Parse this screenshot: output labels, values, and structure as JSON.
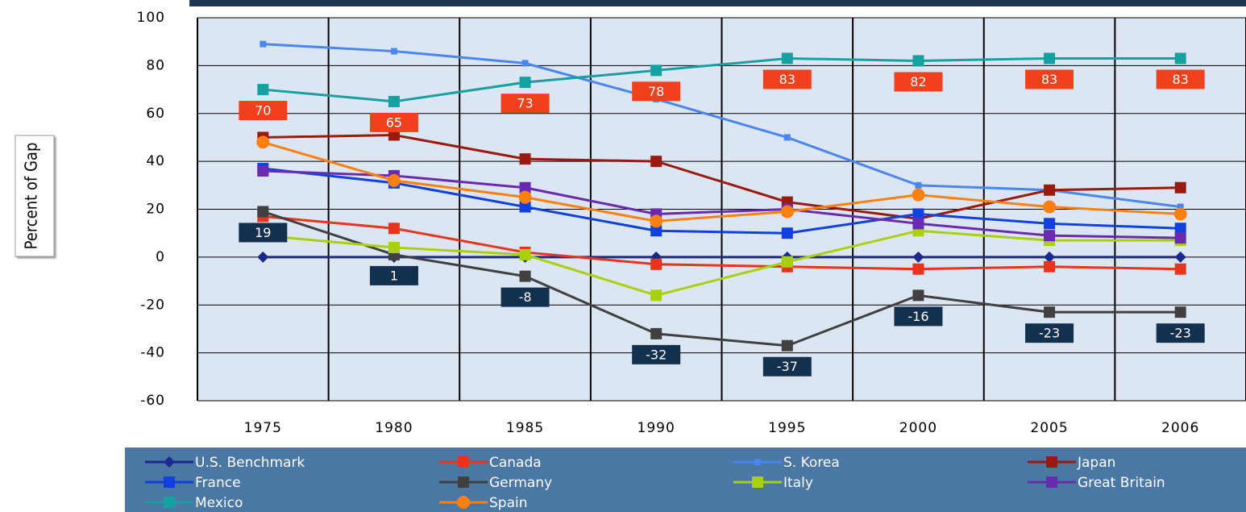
{
  "chart_data": {
    "type": "line",
    "y_label": "Percent of Gap",
    "categories": [
      "1975",
      "1980",
      "1985",
      "1990",
      "1995",
      "2000",
      "2005",
      "2006"
    ],
    "ylim": [
      -60,
      100
    ],
    "yticks": [
      -60,
      -40,
      -20,
      0,
      20,
      40,
      60,
      80,
      100
    ],
    "grid": true,
    "series": [
      {
        "name": "U.S. Benchmark",
        "color": "#1a2a8c",
        "marker": "diamond",
        "values": [
          0,
          0,
          0,
          0,
          0,
          0,
          0,
          0
        ]
      },
      {
        "name": "Canada",
        "color": "#e8341c",
        "marker": "square",
        "values": [
          17,
          12,
          2,
          -3,
          -4,
          -5,
          -4,
          -5
        ]
      },
      {
        "name": "S. Korea",
        "color": "#4a86f0",
        "marker": "small",
        "values": [
          89,
          86,
          81,
          66,
          50,
          30,
          28,
          21
        ]
      },
      {
        "name": "Japan",
        "color": "#9a1a10",
        "marker": "square",
        "values": [
          50,
          51,
          41,
          40,
          23,
          16,
          28,
          29
        ]
      },
      {
        "name": "France",
        "color": "#1040e0",
        "marker": "square",
        "values": [
          37,
          31,
          21,
          11,
          10,
          18,
          14,
          12
        ]
      },
      {
        "name": "Germany",
        "color": "#404040",
        "marker": "square",
        "values": [
          19,
          1,
          -8,
          -32,
          -37,
          -16,
          -23,
          -23
        ],
        "data_labels": true,
        "label_color": "#14304f"
      },
      {
        "name": "Italy",
        "color": "#a8d010",
        "marker": "square",
        "values": [
          9,
          4,
          1,
          -16,
          -2,
          11,
          7,
          7
        ]
      },
      {
        "name": "Great Britain",
        "color": "#6a2ab0",
        "marker": "square",
        "values": [
          36,
          34,
          29,
          18,
          20,
          14,
          9,
          8
        ]
      },
      {
        "name": "Mexico",
        "color": "#16a0a0",
        "marker": "square",
        "values": [
          70,
          65,
          73,
          78,
          83,
          82,
          83,
          83
        ],
        "data_labels": true,
        "label_color": "#f0401c"
      },
      {
        "name": "Spain",
        "color": "#ff8010",
        "marker": "circle",
        "values": [
          48,
          32,
          25,
          15,
          19,
          26,
          21,
          18
        ]
      }
    ]
  }
}
